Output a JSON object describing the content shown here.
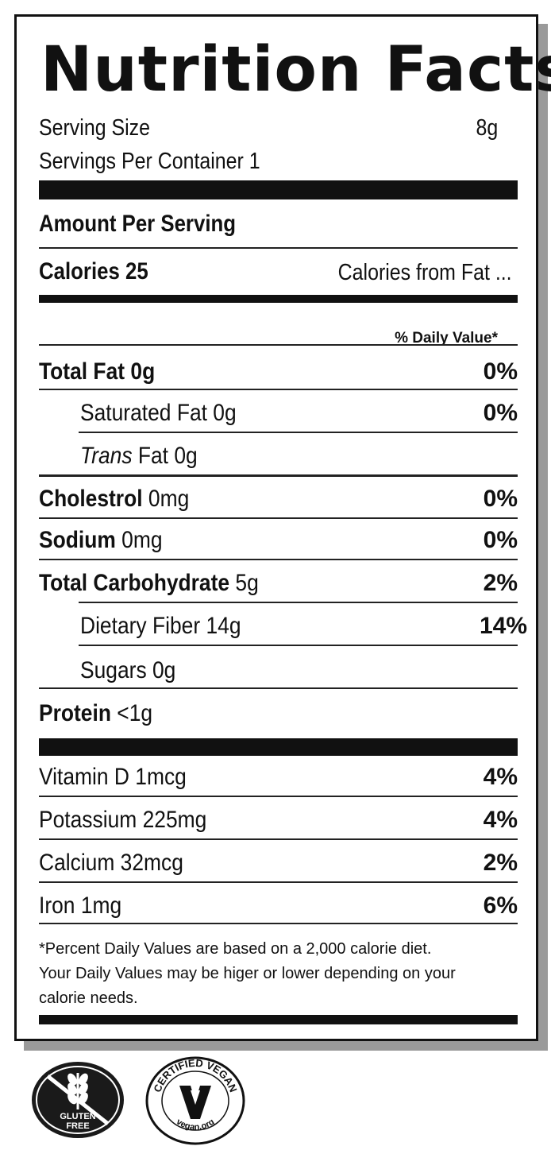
{
  "label": {
    "title": "Nutrition Facts",
    "serving_size_label": "Serving Size",
    "serving_size_value": "8g",
    "servings_per_container": "Servings Per Container  1",
    "amount_per_serving": "Amount Per Serving",
    "calories_label": "Calories",
    "calories_value": "25",
    "calories_from_fat": "Calories from Fat ...",
    "daily_value_header": "% Daily Value*"
  },
  "nutrients": [
    {
      "name": "Total Fat",
      "amount": "0g",
      "dv": "0%"
    },
    {
      "name": "Saturated Fat",
      "amount": "0g",
      "dv": "0%"
    },
    {
      "name": "Trans",
      "amount": "Fat 0g",
      "dv": ""
    },
    {
      "name": "Cholestrol",
      "amount": "0mg",
      "dv": "0%"
    },
    {
      "name": "Sodium",
      "amount": "0mg",
      "dv": "0%"
    },
    {
      "name": "Total Carbohydrate",
      "amount": "5g",
      "dv": "2%"
    },
    {
      "name": "Dietary Fiber",
      "amount": "14g",
      "dv": "14%"
    },
    {
      "name": "Sugars",
      "amount": "0g",
      "dv": ""
    },
    {
      "name": "Protein",
      "amount": "<1g",
      "dv": ""
    }
  ],
  "vitamins": [
    {
      "text": "Vitamin D 1mcg",
      "dv": "4%"
    },
    {
      "text": "Potassium 225mg",
      "dv": "4%"
    },
    {
      "text": "Calcium 32mcg",
      "dv": "2%"
    },
    {
      "text": "Iron 1mg",
      "dv": "6%"
    }
  ],
  "footnote": [
    "*Percent Daily Values are based on a 2,000 calorie diet.",
    "Your Daily Values may be higer or lower depending on your",
    "calorie needs."
  ],
  "badges": {
    "gluten_free_line1": "GLUTEN",
    "gluten_free_line2": "FREE",
    "vegan_top": "CERTIFIED VEGAN",
    "vegan_bottom": "vegan.org"
  },
  "icons": [
    "gluten-free-icon",
    "certified-vegan-icon"
  ],
  "colors": {
    "ink": "#111111",
    "paper": "#ffffff",
    "shadow": "#9a9a9a"
  }
}
